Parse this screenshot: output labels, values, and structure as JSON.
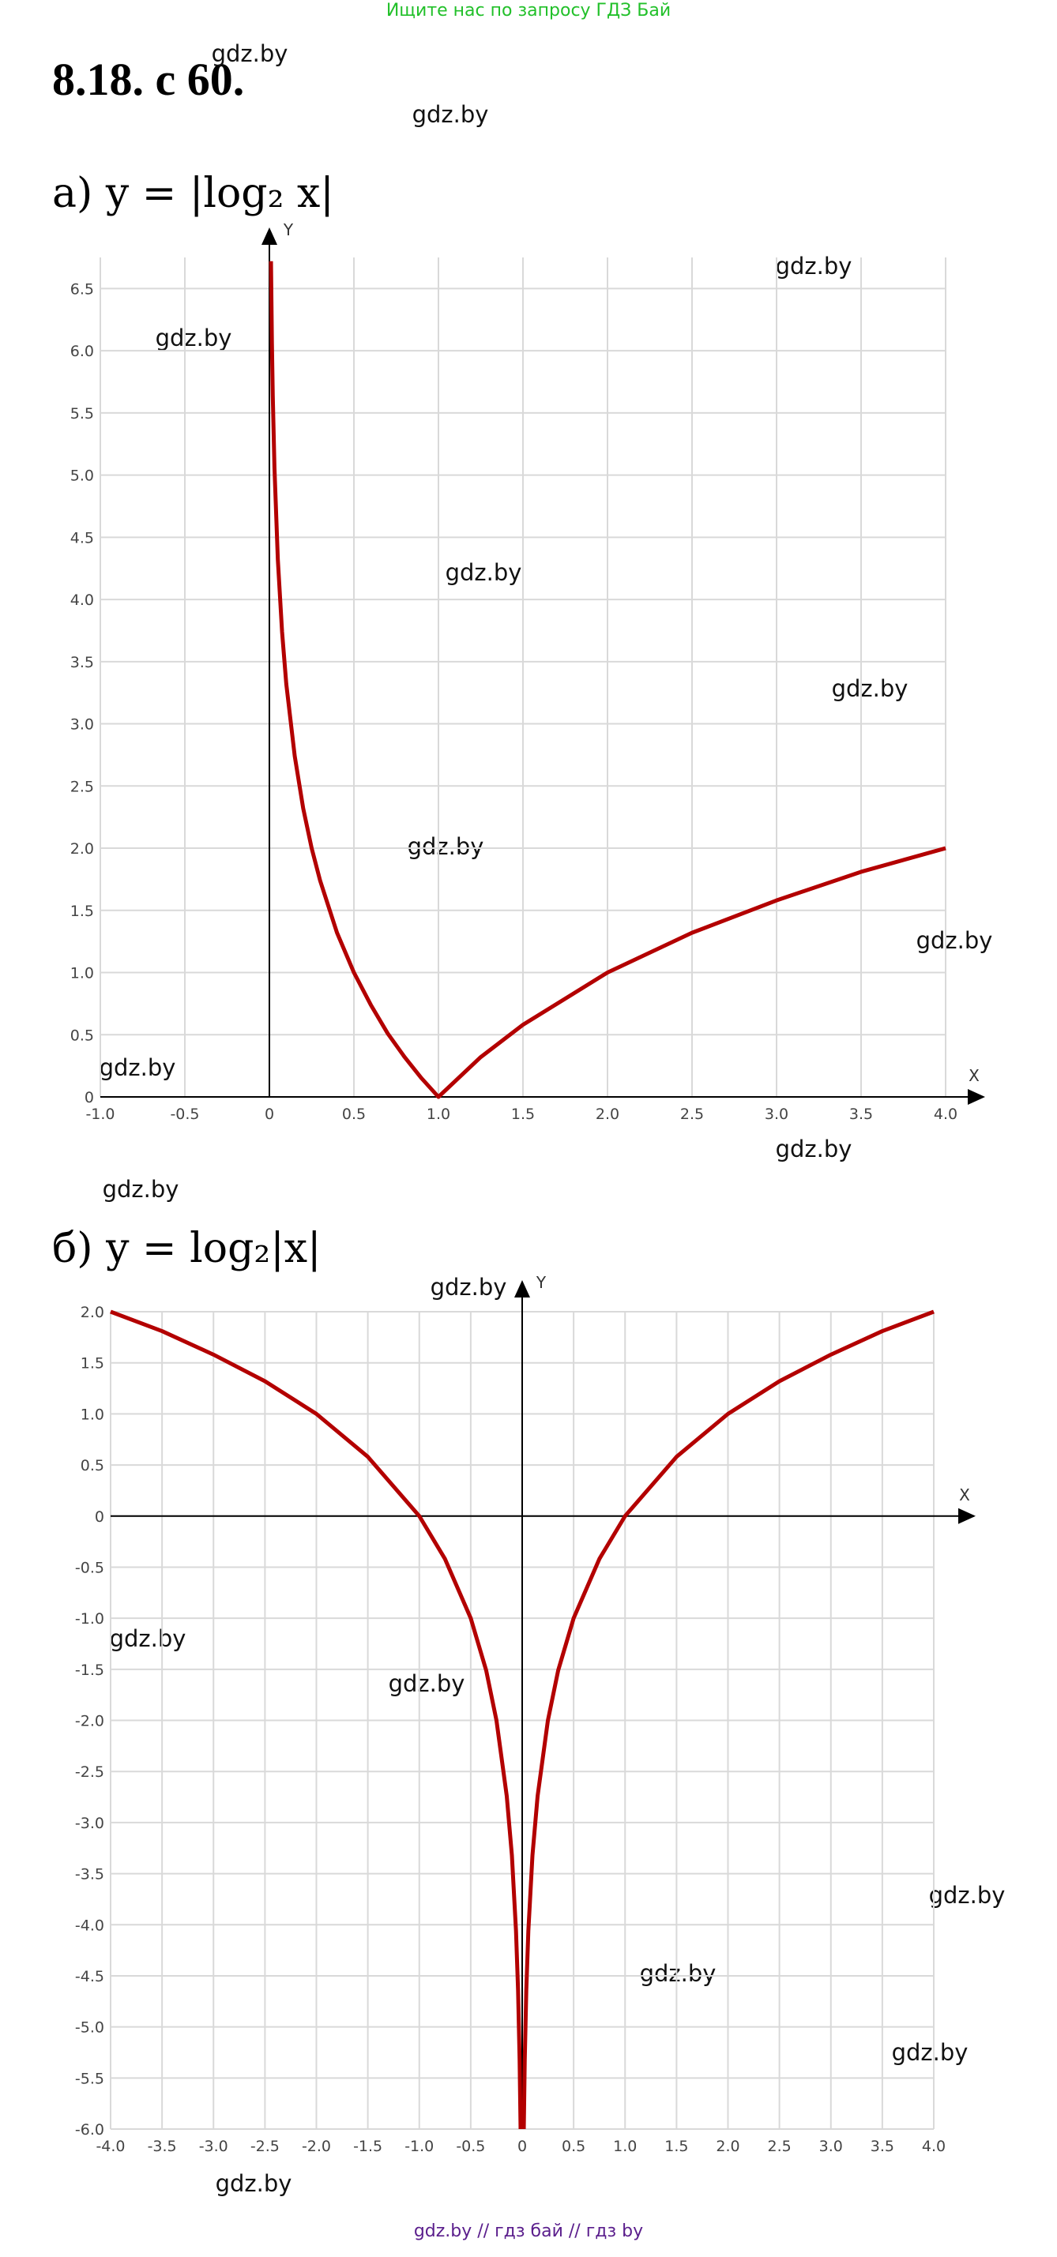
{
  "banner": "Ищите нас по запросу ГДЗ Бай",
  "heading": "8.18. с 60.",
  "footer": "gdz.by  //  гдз бай  //  гдз by",
  "watermarks": [
    "gdz.by",
    "gdz.by",
    "gdz.by",
    "gdz.by",
    "gdz.by",
    "gdz.by",
    "gdz.by",
    "gdz.by",
    "gdz.by",
    "gdz.by",
    "gdz.by",
    "gdz.by",
    "gdz.by",
    "gdz.by",
    "gdz.by",
    "gdz.by",
    "gdz.by",
    "gdz.by"
  ],
  "chart_data": [
    {
      "type": "line",
      "title": "а) y = |log₂ x|",
      "x_label": "X",
      "y_label": "Y",
      "grid": true,
      "xlim": [
        -1,
        4
      ],
      "ylim": [
        0,
        6.75
      ],
      "xticks": [
        {
          "value": -1,
          "label": "-1.0"
        },
        -0.5,
        0,
        0.5,
        {
          "value": 1,
          "label": "1.0"
        },
        1.5,
        {
          "value": 2,
          "label": "2.0"
        },
        2.5,
        {
          "value": 3,
          "label": "3.0"
        },
        3.5,
        {
          "value": 4,
          "label": "4.0"
        }
      ],
      "yticks": [
        0,
        0.5,
        {
          "value": 1,
          "label": "1.0"
        },
        1.5,
        {
          "value": 2,
          "label": "2.0"
        },
        2.5,
        {
          "value": 3,
          "label": "3.0"
        },
        3.5,
        {
          "value": 4,
          "label": "4.0"
        },
        4.5,
        {
          "value": 5,
          "label": "5.0"
        },
        5.5,
        {
          "value": 6,
          "label": "6.0"
        },
        6.5
      ],
      "series": [
        {
          "color": "#b30000",
          "x": [
            0.0095,
            0.015,
            0.02,
            0.03,
            0.05,
            0.075,
            0.1,
            0.15,
            0.2,
            0.25,
            0.3,
            0.4,
            0.5,
            0.6,
            0.7,
            0.8,
            0.9,
            1,
            1.25,
            1.5,
            2,
            2.5,
            3,
            3.5,
            4
          ],
          "values": [
            6.72,
            6.06,
            5.64,
            5.06,
            4.32,
            3.74,
            3.32,
            2.74,
            2.32,
            2,
            1.74,
            1.32,
            1,
            0.74,
            0.51,
            0.32,
            0.15,
            0,
            0.32,
            0.58,
            1,
            1.32,
            1.58,
            1.81,
            2
          ]
        }
      ]
    },
    {
      "type": "line",
      "title": "б) y = log₂|x|",
      "x_label": "X",
      "y_label": "Y",
      "grid": true,
      "xlim": [
        -4,
        4
      ],
      "ylim": [
        -6,
        2
      ],
      "xticks": [
        {
          "value": -4,
          "label": "-4.0"
        },
        -3.5,
        {
          "value": -3,
          "label": "-3.0"
        },
        -2.5,
        {
          "value": -2,
          "label": "-2.0"
        },
        -1.5,
        {
          "value": -1,
          "label": "-1.0"
        },
        -0.5,
        0,
        0.5,
        {
          "value": 1,
          "label": "1.0"
        },
        1.5,
        {
          "value": 2,
          "label": "2.0"
        },
        2.5,
        {
          "value": 3,
          "label": "3.0"
        },
        3.5,
        {
          "value": 4,
          "label": "4.0"
        }
      ],
      "yticks": [
        {
          "value": -6,
          "label": "-6.0"
        },
        -5.5,
        {
          "value": -5,
          "label": "-5.0"
        },
        -4.5,
        {
          "value": -4,
          "label": "-4.0"
        },
        -3.5,
        {
          "value": -3,
          "label": "-3.0"
        },
        -2.5,
        {
          "value": -2,
          "label": "-2.0"
        },
        -1.5,
        {
          "value": -1,
          "label": "-1.0"
        },
        -0.5,
        0,
        0.5,
        {
          "value": 1,
          "label": "1.0"
        },
        1.5,
        {
          "value": 2,
          "label": "2.0"
        }
      ],
      "series": [
        {
          "color": "#b30000",
          "x": [
            -4,
            -3.5,
            -3,
            -2.5,
            -2,
            -1.5,
            -1,
            -0.75,
            -0.5,
            -0.35,
            -0.25,
            -0.15,
            -0.1,
            -0.06,
            -0.04,
            -0.025,
            -0.0156,
            0,
            0.0156,
            0.025,
            0.04,
            0.06,
            0.1,
            0.15,
            0.25,
            0.35,
            0.5,
            0.75,
            1,
            1.5,
            2,
            2.5,
            3,
            3.5,
            4
          ],
          "values": [
            2,
            1.81,
            1.58,
            1.32,
            1,
            0.58,
            0,
            -0.42,
            -1,
            -1.51,
            -2,
            -2.74,
            -3.32,
            -4.06,
            -4.64,
            -5.32,
            -6,
            null,
            -6,
            -5.32,
            -4.64,
            -4.06,
            -3.32,
            -2.74,
            -2,
            -1.51,
            -1,
            -0.42,
            0,
            0.58,
            1,
            1.32,
            1.58,
            1.81,
            2
          ]
        }
      ]
    }
  ]
}
